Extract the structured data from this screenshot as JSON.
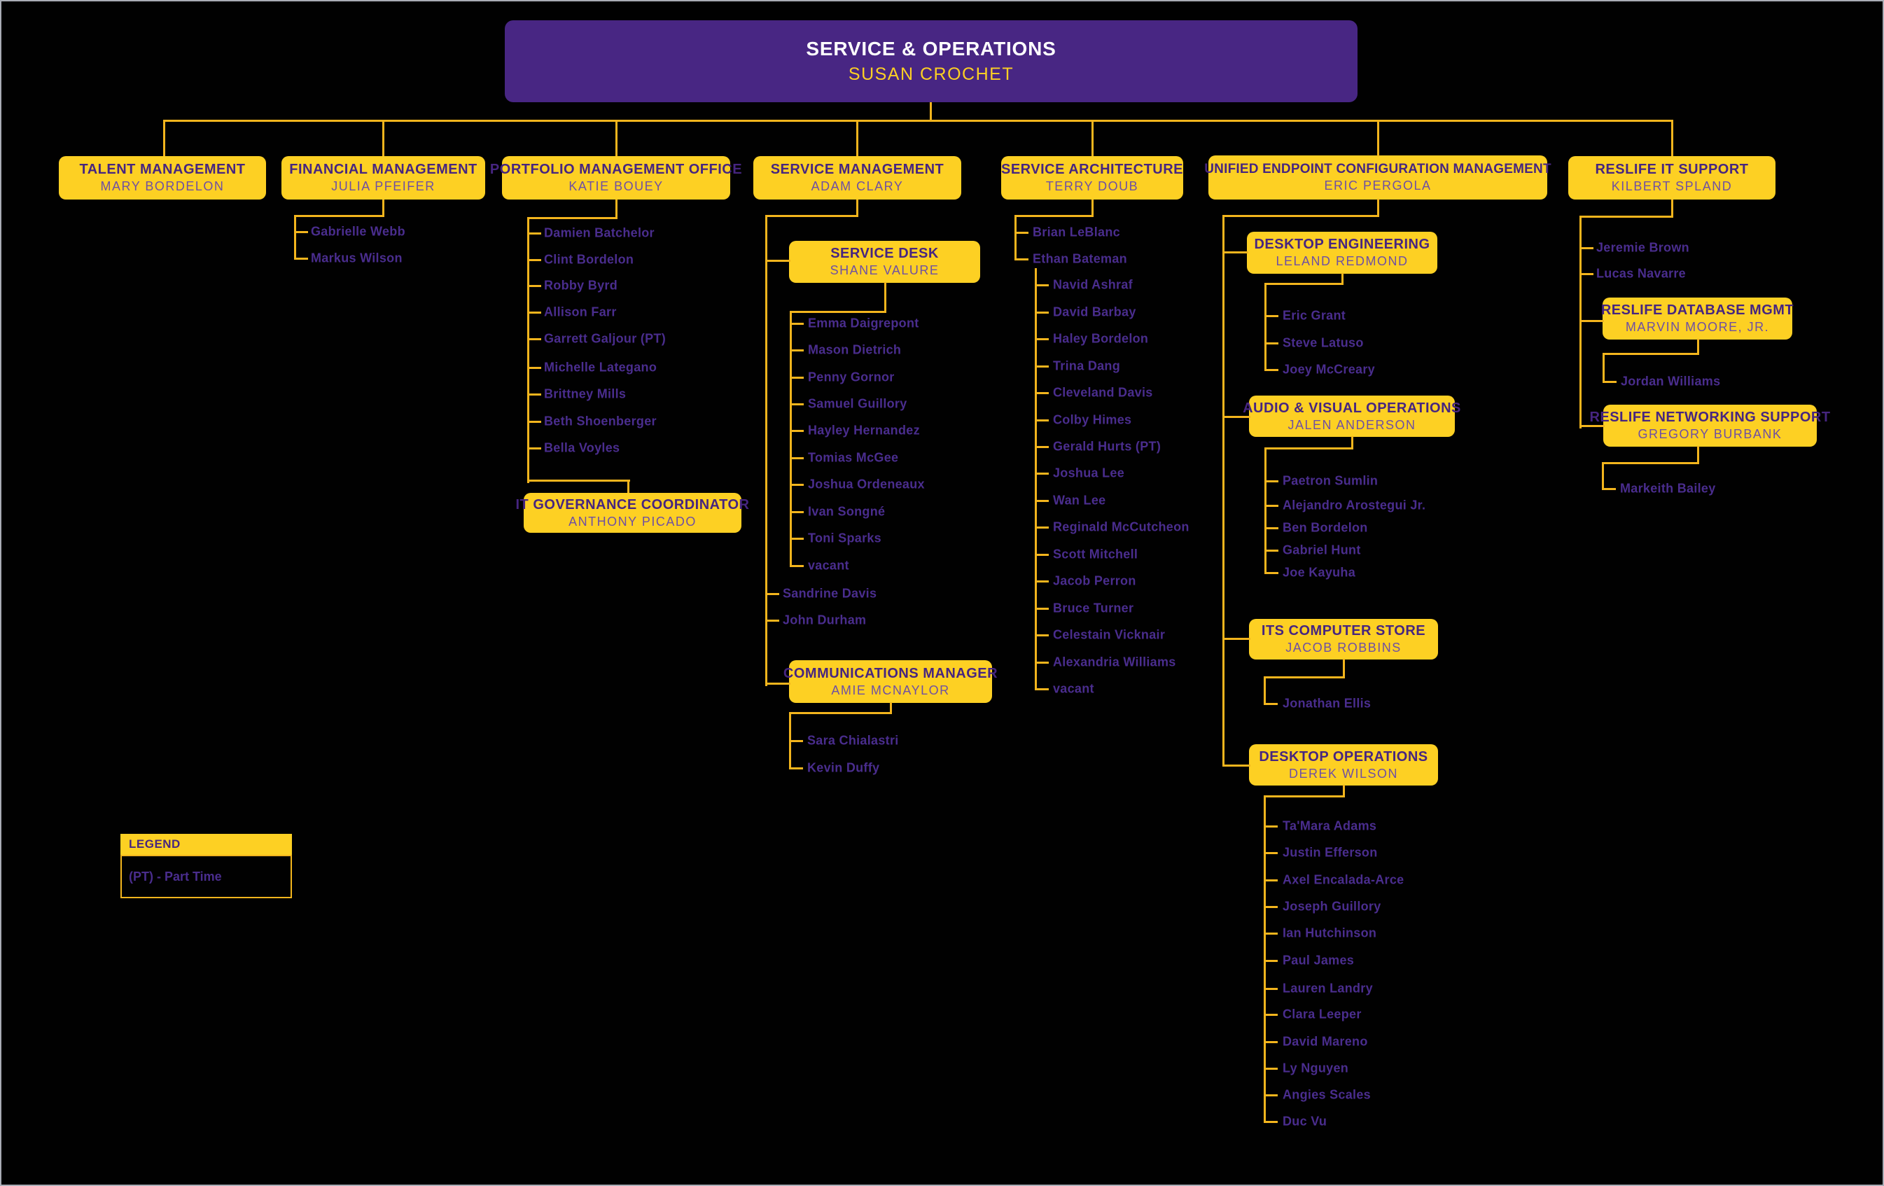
{
  "colors": {
    "background": "#010101",
    "gold_box": "#FDD023",
    "purple_box": "#482683",
    "connector_line": "#F3B51D",
    "box_title_text": "#462580",
    "box_name_text": "#6e4fa4",
    "member_text": "#4a2d8e",
    "root_title_text": "#ffffff",
    "root_name_text": "#FDD023"
  },
  "root": {
    "title": "SERVICE & OPERATIONS",
    "name": "SUSAN CROCHET"
  },
  "boxes": [
    {
      "id": "talent",
      "title": "TALENT MANAGEMENT",
      "name": "MARY BORDELON"
    },
    {
      "id": "financial",
      "title": "FINANCIAL MANAGEMENT",
      "name": "JULIA PFEIFER"
    },
    {
      "id": "pmo",
      "title": "PORTFOLIO MANAGEMENT OFFICE",
      "name": "KATIE BOUEY"
    },
    {
      "id": "svcmgmt",
      "title": "SERVICE MANAGEMENT",
      "name": "ADAM CLARY"
    },
    {
      "id": "svcarch",
      "title": "SERVICE ARCHITECTURE",
      "name": "TERRY DOUB"
    },
    {
      "id": "uecm",
      "title": "UNIFIED ENDPOINT CONFIGURATION MANAGEMENT",
      "name": "ERIC PERGOLA"
    },
    {
      "id": "reslife",
      "title": "RESLIFE IT SUPPORT",
      "name": "KILBERT SPLAND"
    },
    {
      "id": "servicedesk",
      "title": "SERVICE DESK",
      "name": "SHANE VALURE"
    },
    {
      "id": "itgov",
      "title": "IT GOVERNANCE COORDINATOR",
      "name": "ANTHONY PICADO"
    },
    {
      "id": "comms",
      "title": "COMMUNICATIONS MANAGER",
      "name": "AMIE MCNAYLOR"
    },
    {
      "id": "deskeng",
      "title": "DESKTOP ENGINEERING",
      "name": "LELAND REDMOND"
    },
    {
      "id": "av",
      "title": "AUDIO & VISUAL OPERATIONS",
      "name": "JALEN ANDERSON"
    },
    {
      "id": "store",
      "title": "ITS COMPUTER STORE",
      "name": "JACOB ROBBINS"
    },
    {
      "id": "deskops",
      "title": "DESKTOP OPERATIONS",
      "name": "DEREK WILSON"
    },
    {
      "id": "rdm",
      "title": "RESLIFE DATABASE MGMT",
      "name": "MARVIN MOORE, JR."
    },
    {
      "id": "rns",
      "title": "RESLIFE NETWORKING SUPPORT",
      "name": "GREGORY BURBANK"
    }
  ],
  "staff_lists": [
    {
      "id": "financial-staff",
      "members": [
        "Gabrielle Webb",
        "Markus Wilson"
      ]
    },
    {
      "id": "pmo-staff",
      "members": [
        "Damien Batchelor",
        "Clint Bordelon",
        "Robby Byrd",
        "Allison Farr",
        "Garrett Galjour (PT)",
        "Michelle Lategano",
        "Brittney Mills",
        "Beth Shoenberger",
        "Bella Voyles"
      ]
    },
    {
      "id": "servicedesk-staff",
      "members": [
        "Emma Daigrepont",
        "Mason Dietrich",
        "Penny Gornor",
        "Samuel Guillory",
        "Hayley Hernandez",
        "Tomias McGee",
        "Joshua Ordeneaux",
        "Ivan Songné",
        "Toni Sparks",
        "vacant"
      ]
    },
    {
      "id": "svcmgmt-staff",
      "members": [
        "Sandrine Davis",
        "John Durham"
      ]
    },
    {
      "id": "comms-staff",
      "members": [
        "Sara Chialastri",
        "Kevin Duffy"
      ]
    },
    {
      "id": "svcarch-staff",
      "members": [
        "Brian LeBlanc",
        "Ethan Bateman"
      ]
    },
    {
      "id": "svcarch-team",
      "members": [
        "Navid Ashraf",
        "David Barbay",
        "Haley Bordelon",
        "Trina Dang",
        "Cleveland Davis",
        "Colby Himes",
        "Gerald Hurts (PT)",
        "Joshua Lee",
        "Wan Lee",
        "Reginald McCutcheon",
        "Scott Mitchell",
        "Jacob Perron",
        "Bruce Turner",
        "Celestain Vicknair",
        "Alexandria Williams",
        "vacant"
      ]
    },
    {
      "id": "deskeng-staff",
      "members": [
        "Eric Grant",
        "Steve Latuso",
        "Joey McCreary"
      ]
    },
    {
      "id": "av-staff",
      "members": [
        "Paetron Sumlin",
        "Alejandro Arostegui Jr.",
        "Ben Bordelon",
        "Gabriel Hunt",
        "Joe Kayuha"
      ]
    },
    {
      "id": "store-staff",
      "members": [
        "Jonathan Ellis"
      ]
    },
    {
      "id": "deskops-staff",
      "members": [
        "Ta'Mara Adams",
        "Justin Efferson",
        "Axel Encalada-Arce",
        "Joseph Guillory",
        "Ian Hutchinson",
        "Paul James",
        "Lauren Landry",
        "Clara Leeper",
        "David Mareno",
        "Ly Nguyen",
        "Angies Scales",
        "Duc Vu"
      ]
    },
    {
      "id": "reslife-staff",
      "members": [
        "Jeremie Brown",
        "Lucas Navarre"
      ]
    },
    {
      "id": "rdm-staff",
      "members": [
        "Jordan Williams"
      ]
    },
    {
      "id": "rns-staff",
      "members": [
        "Markeith Bailey"
      ]
    }
  ],
  "legend": {
    "title": "LEGEND",
    "items": [
      "(PT) - Part Time"
    ]
  }
}
